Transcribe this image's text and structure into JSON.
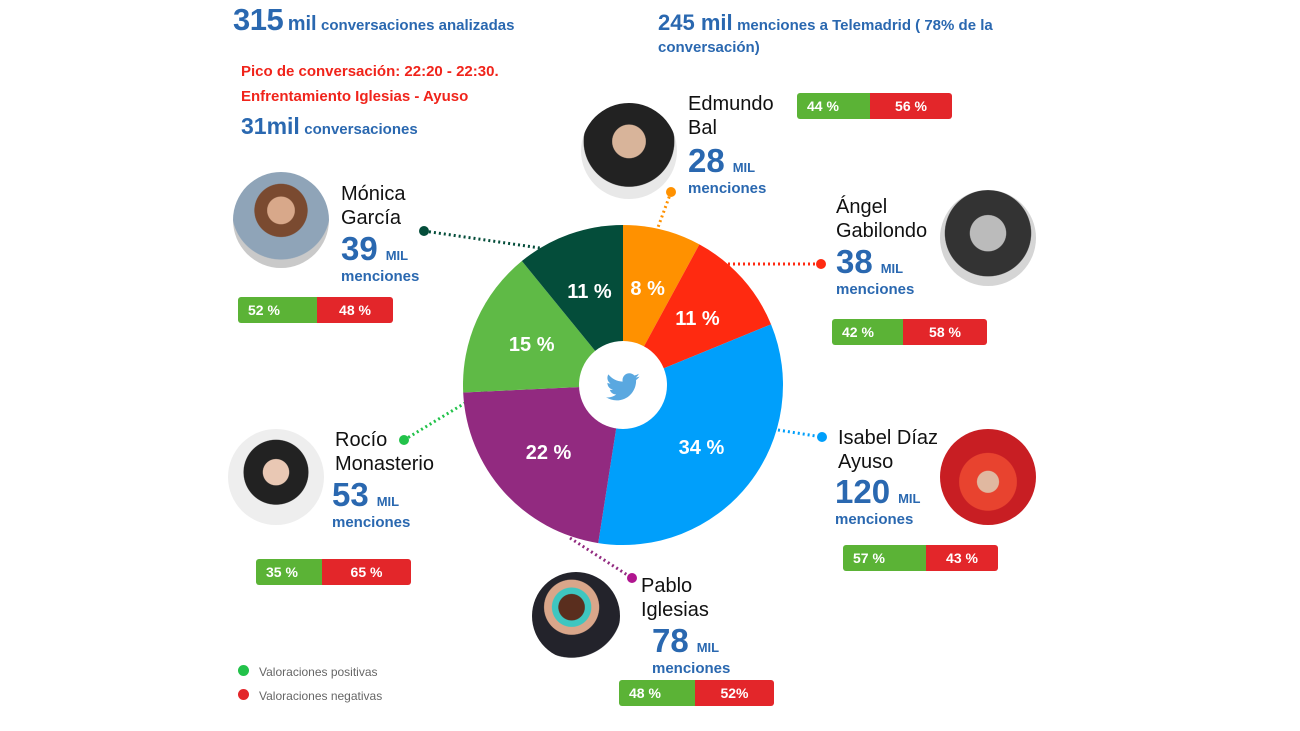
{
  "header": {
    "total_num": "315",
    "total_unit": "mil",
    "total_label": "conversaciones analizadas",
    "telemadrid_num": "245 mil",
    "telemadrid_label": "menciones a Telemadrid ( 78% de la conversación)",
    "peak_line1": "Pico de conversación: 22:20 - 22:30.",
    "peak_line2": "Enfrentamiento Iglesias - Ayuso",
    "peak_num": "31mil",
    "peak_label": "conversaciones",
    "overall_positive": "44 %",
    "overall_negative": "56 %",
    "overall_positive_value": 44
  },
  "unit_mil": "MIL",
  "unit_menciones": "menciones",
  "candidates": {
    "bal": {
      "name1": "Edmundo",
      "name2": "Bal",
      "mentions": "28",
      "pos": "",
      "neg": ""
    },
    "garcia": {
      "name1": "Mónica",
      "name2": "García",
      "mentions": "39",
      "pos": "52 %",
      "neg": "48 %",
      "pos_value": 52
    },
    "gabilondo": {
      "name1": "Ángel",
      "name2": "Gabilondo",
      "mentions": "38",
      "pos": "42 %",
      "neg": "58 %",
      "pos_value": 42
    },
    "ayuso": {
      "name1": "Isabel Díaz",
      "name2": "Ayuso",
      "mentions": "120",
      "pos": "57 %",
      "neg": "43 %",
      "pos_value": 57
    },
    "monasterio": {
      "name1": "Rocío",
      "name2": "Monasterio",
      "mentions": "53",
      "pos": "35 %",
      "neg": "65 %",
      "pos_value": 35
    },
    "iglesias": {
      "name1": "Pablo",
      "name2": "Iglesias",
      "mentions": "78",
      "pos": "48 %",
      "neg": "52%",
      "pos_value": 48
    }
  },
  "legend": {
    "positive": "Valoraciones positivas",
    "negative": "Valoraciones negativas",
    "positive_color": "#22c24a",
    "negative_color": "#e3262a"
  },
  "chart_data": {
    "type": "pie",
    "center_icon": "twitter-bird-icon",
    "slices": [
      {
        "label": "8 %",
        "value": 8,
        "candidate": "Edmundo Bal",
        "color": "#ff9100"
      },
      {
        "label": "11 %",
        "value": 11,
        "candidate": "Ángel Gabilondo",
        "color": "#ff2a10"
      },
      {
        "label": "34 %",
        "value": 34,
        "candidate": "Isabel Díaz Ayuso",
        "color": "#009ffb"
      },
      {
        "label": "22 %",
        "value": 22,
        "candidate": "Pablo Iglesias",
        "color": "#922a80"
      },
      {
        "label": "15 %",
        "value": 15,
        "candidate": "Rocío Monasterio",
        "color": "#5fba46"
      },
      {
        "label": "11 %",
        "value": 11,
        "candidate": "Mónica García",
        "color": "#044d3a"
      }
    ]
  }
}
